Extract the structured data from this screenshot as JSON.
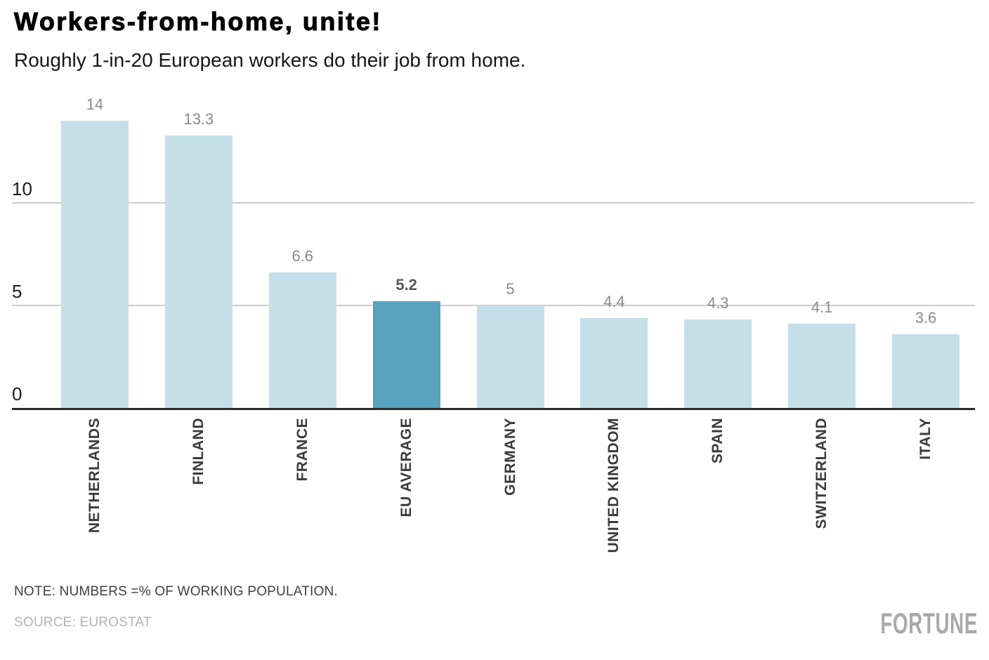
{
  "header": {
    "title": "Workers-from-home, unite!",
    "subtitle": "Roughly 1-in-20 European workers do their job from home."
  },
  "chart_data": {
    "type": "bar",
    "title": "Workers-from-home, unite!",
    "subtitle": "Roughly 1-in-20 European workers do their job from home.",
    "categories": [
      "NETHERLANDS",
      "FINLAND",
      "FRANCE",
      "EU AVERAGE",
      "GERMANY",
      "UNITED KINGDOM",
      "SPAIN",
      "SWITZERLAND",
      "ITALY"
    ],
    "values": [
      14,
      13.3,
      6.6,
      5.2,
      5,
      4.4,
      4.3,
      4.1,
      3.6
    ],
    "value_labels": [
      "14",
      "13.3",
      "6.6",
      "5.2",
      "5",
      "4.4",
      "4.3",
      "4.1",
      "3.6"
    ],
    "highlight_index": 3,
    "highlight_category": "EU AVERAGE",
    "xlabel": "",
    "ylabel": "",
    "yticks": [
      0,
      5,
      10
    ],
    "ylim": [
      0,
      14.5
    ],
    "grid": "horizontal",
    "legend": "none",
    "units": "% of working population"
  },
  "colors": {
    "bar": "#c4dfe9",
    "highlight_bar": "#57a2be",
    "gridline": "#cccccc",
    "axis": "#2b2b2b",
    "tick_label": "#1a1a1a",
    "x_label": "#3a3a3a",
    "value_label": "#8a8a8a",
    "value_label_highlight": "#565656"
  },
  "footer": {
    "note": "NOTE: NUMBERS =% OF WORKING POPULATION.",
    "source": "SOURCE: EUROSTAT",
    "logo": "FORTUNE"
  }
}
